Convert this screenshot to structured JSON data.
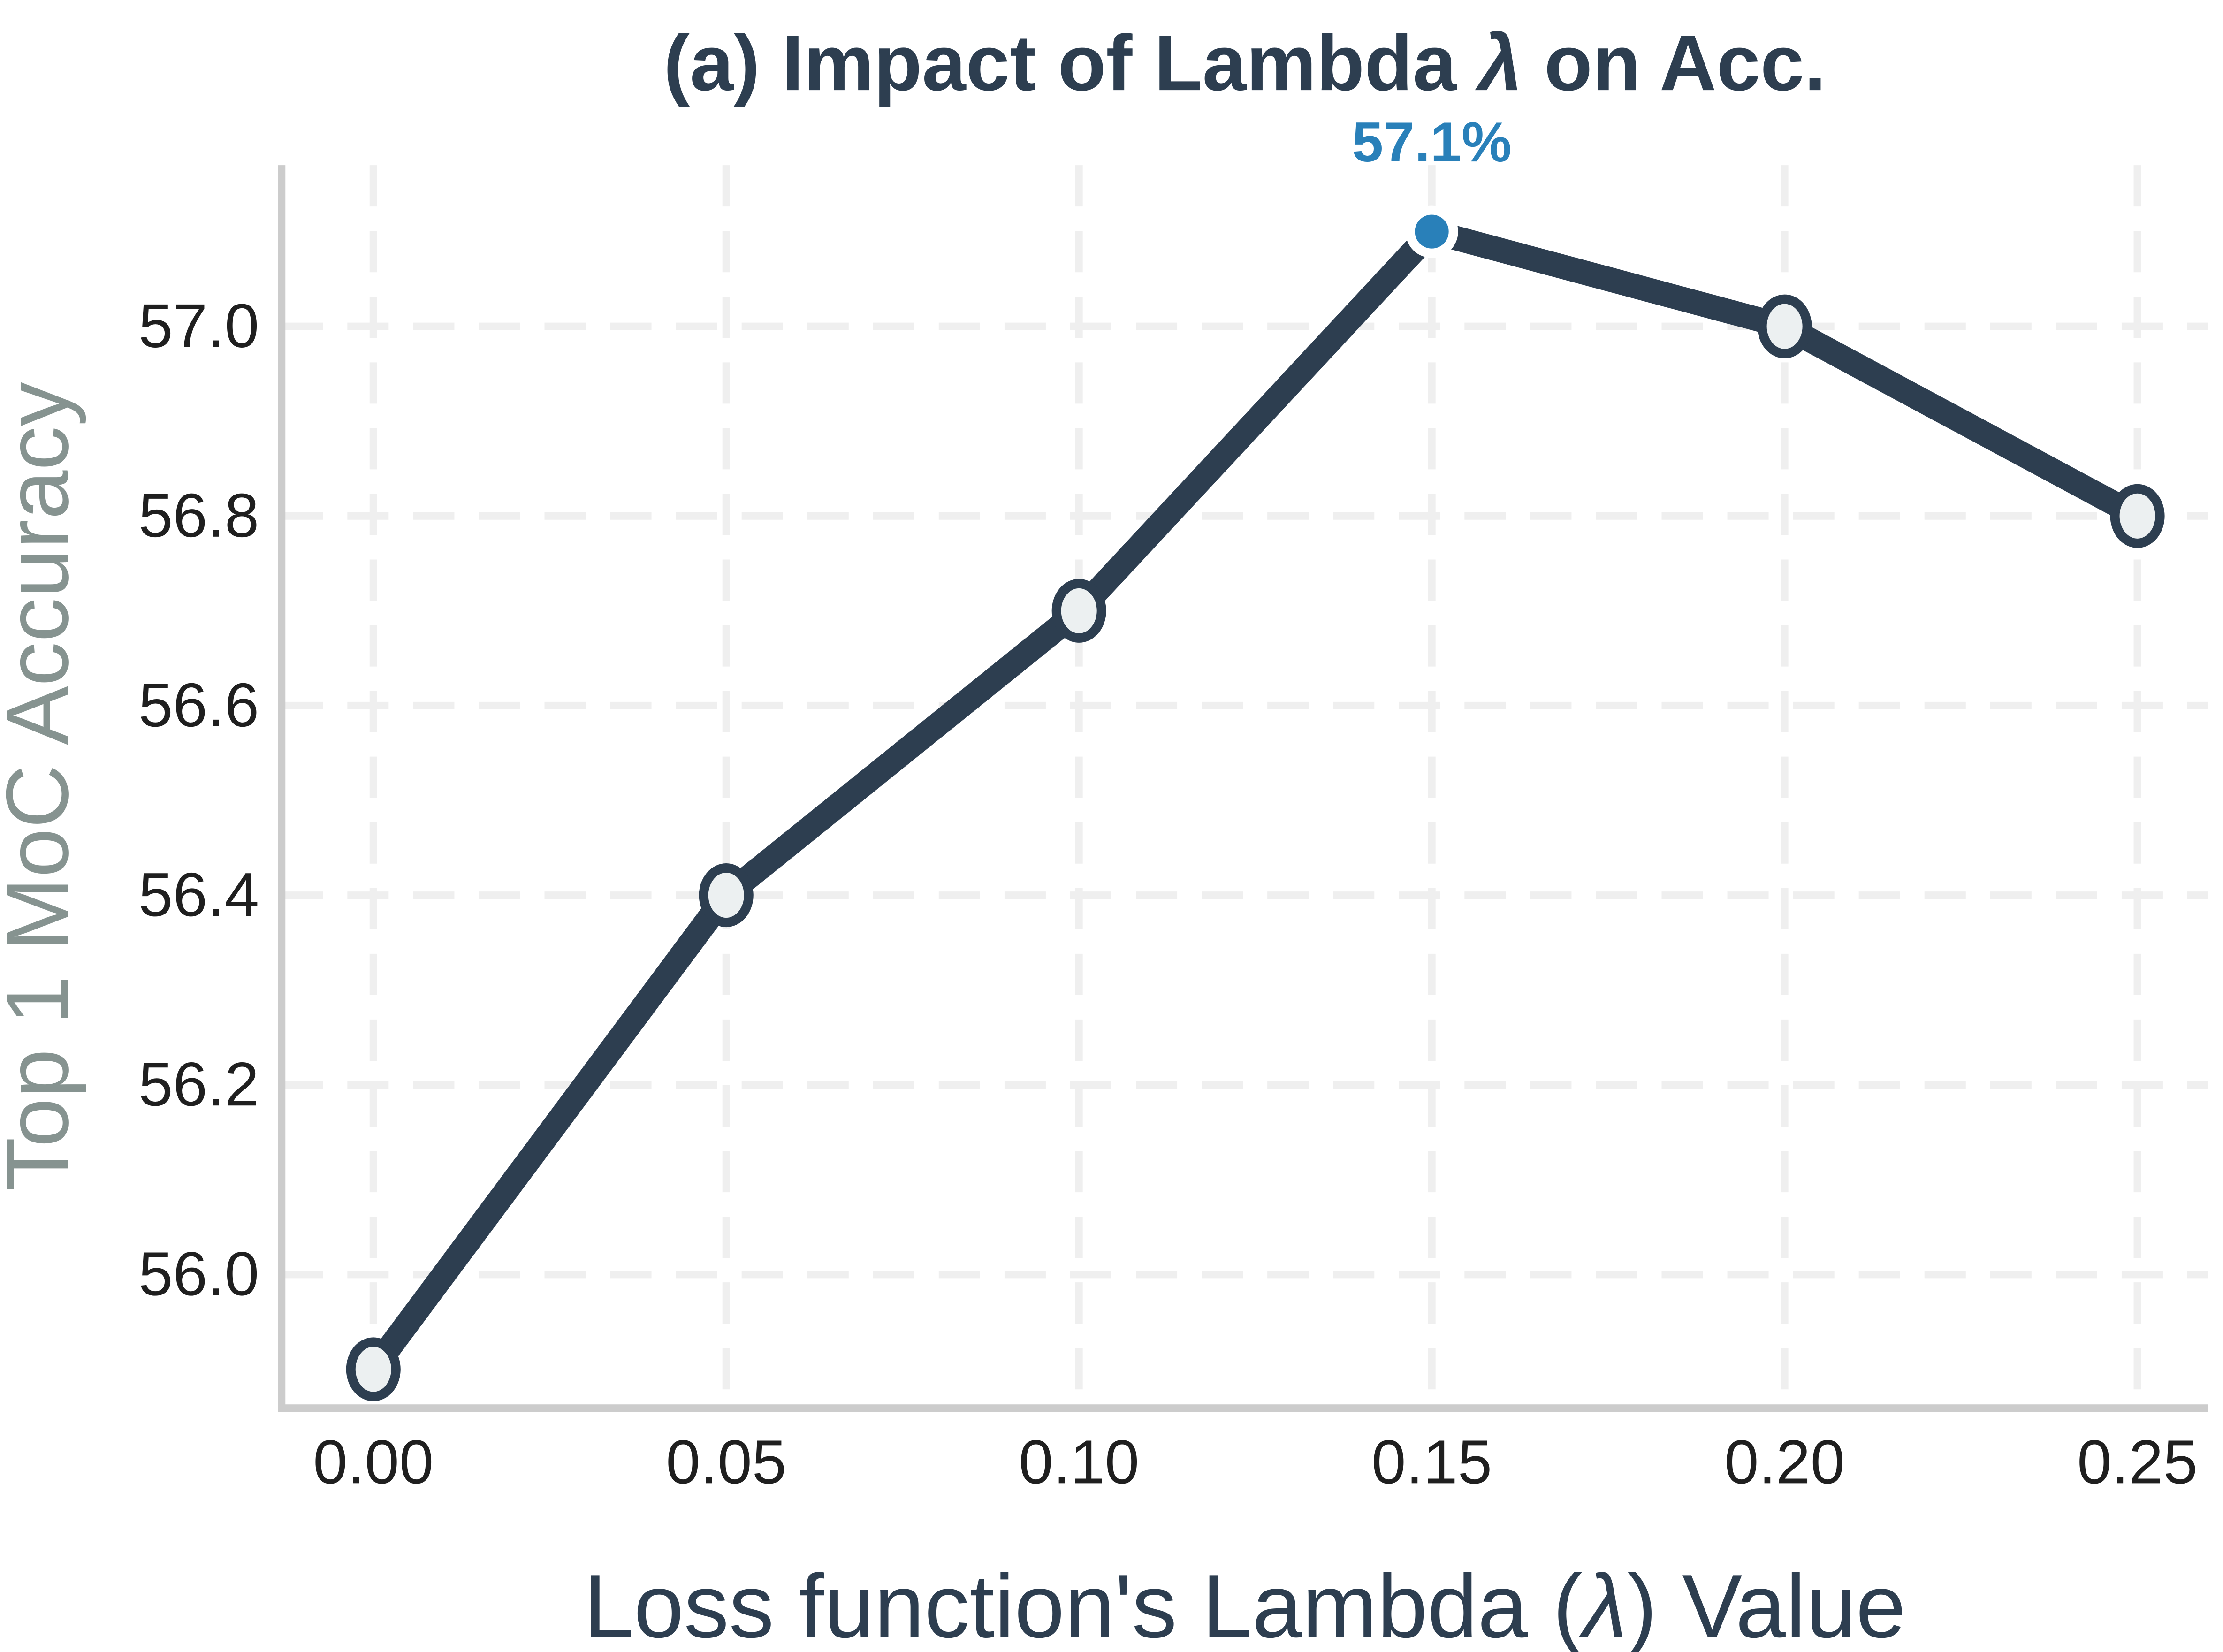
{
  "title": {
    "prefix": "(a) Impact of Lambda ",
    "lambda": "λ",
    "suffix": " on Acc."
  },
  "xlabel": {
    "prefix": "Loss function's Lambda (",
    "lambda": "λ",
    "suffix": ") Value"
  },
  "axes": {
    "ylabel": "Top 1 MoC Accuracy"
  },
  "chart_data": {
    "type": "line",
    "title": "(a) Impact of Lambda λ on Acc.",
    "xlabel": "Loss function's Lambda (λ) Value",
    "ylabel": "Top 1 MoC Accuracy",
    "x": [
      0.0,
      0.05,
      0.1,
      0.15,
      0.2,
      0.25
    ],
    "y": [
      55.9,
      56.4,
      56.7,
      57.1,
      57.0,
      56.8
    ],
    "x_ticks": [
      "0.00",
      "0.05",
      "0.10",
      "0.15",
      "0.20",
      "0.25"
    ],
    "x_tick_values": [
      0.0,
      0.05,
      0.1,
      0.15,
      0.2,
      0.25
    ],
    "y_ticks": [
      "56.0",
      "56.2",
      "56.4",
      "56.6",
      "56.8",
      "57.0"
    ],
    "y_tick_values": [
      56.0,
      56.2,
      56.4,
      56.6,
      56.8,
      57.0
    ],
    "xlim": [
      -0.013,
      0.26
    ],
    "ylim": [
      55.859,
      57.17
    ],
    "grid": true,
    "grid_style": "dashed",
    "legend": "none",
    "highlight_index": 3,
    "annotation": {
      "text": "57.1%",
      "x": 0.15,
      "y": 57.1
    }
  },
  "colors": {
    "background": "#ffffff",
    "line": "#2d3e50",
    "marker_fill": "#ecf0f1",
    "marker_edge": "#2d3e50",
    "highlight": "#2980b9",
    "highlight_edge": "#ffffff",
    "annotation_text": "#2980b9",
    "title_text": "#2d3e50",
    "xlabel_text": "#2d3e50",
    "ylabel_text": "#869390",
    "tick_text": "#1f1f1f",
    "grid": "#efefef",
    "spine": "#cccccc"
  }
}
